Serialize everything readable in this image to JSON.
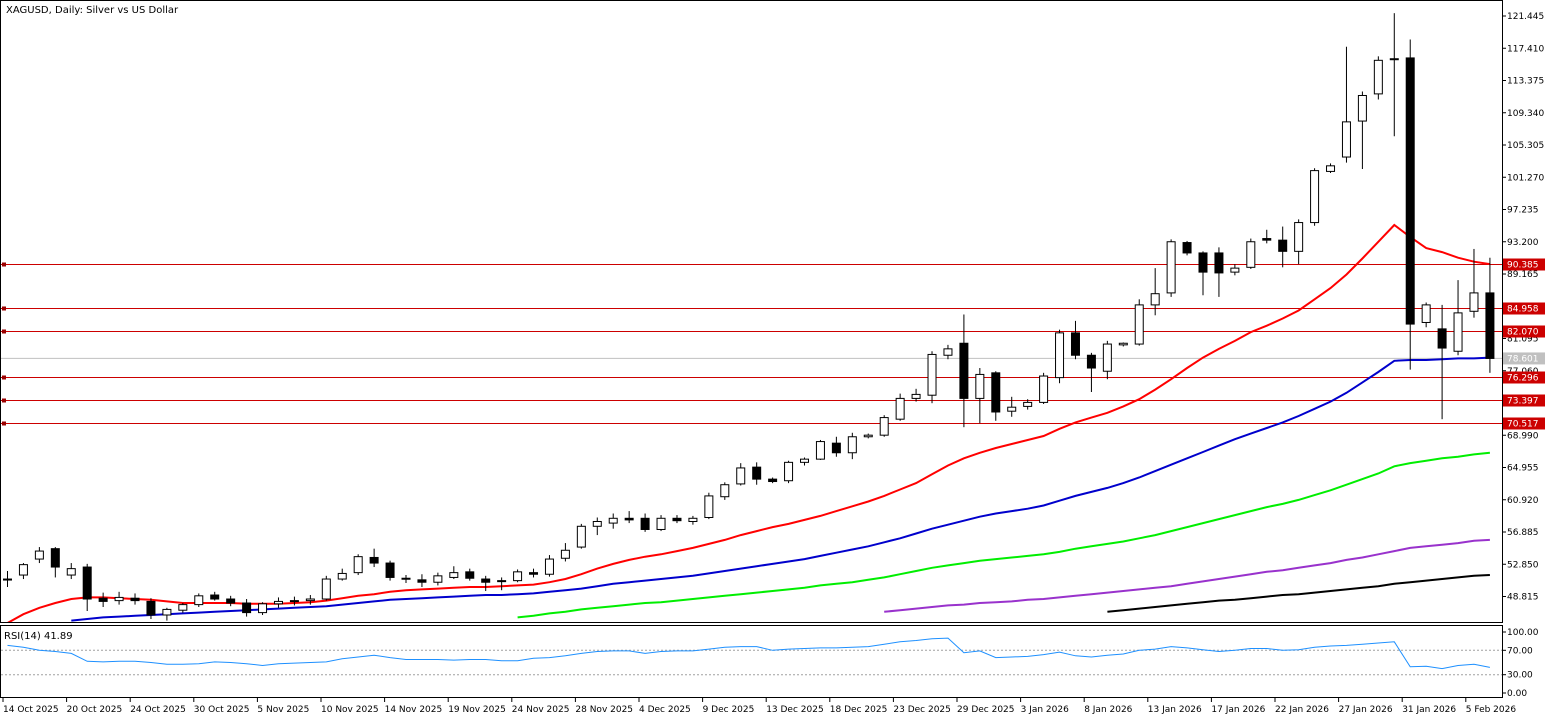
{
  "chart_title": "XAGUSD, Daily:  Silver vs US Dollar",
  "rsi_label": "RSI(14) 41.89",
  "colors": {
    "ma_fast": "#ff0000",
    "ma_mid": "#0000cc",
    "ma_slow": "#00ee00",
    "ma_slower": "#9932cc",
    "ma_slowest": "#000000",
    "rsi_line": "#1e90ff",
    "level_line": "#cc0000",
    "current_price": "#c0c0c0"
  },
  "price_axis": [
    "121.445",
    "117.410",
    "113.375",
    "109.340",
    "105.305",
    "101.270",
    "97.235",
    "93.200",
    "89.165",
    "85.130",
    "81.095",
    "77.060",
    "73.025",
    "68.990",
    "64.955",
    "60.920",
    "56.885",
    "52.850",
    "48.815"
  ],
  "rsi_axis": [
    "100.00",
    "70.00",
    "30.00",
    "0.00"
  ],
  "time_axis": [
    "14 Oct 2025",
    "20 Oct 2025",
    "24 Oct 2025",
    "30 Oct 2025",
    "5 Nov 2025",
    "10 Nov 2025",
    "14 Nov 2025",
    "19 Nov 2025",
    "24 Nov 2025",
    "28 Nov 2025",
    "4 Dec 2025",
    "9 Dec 2025",
    "13 Dec 2025",
    "18 Dec 2025",
    "23 Dec 2025",
    "29 Dec 2025",
    "3 Jan 2026",
    "8 Jan 2026",
    "13 Jan 2026",
    "17 Jan 2026",
    "22 Jan 2026",
    "27 Jan 2026",
    "31 Jan 2026",
    "5 Feb 2026"
  ],
  "levels": [
    "90.385",
    "84.958",
    "82.070",
    "76.296",
    "73.397",
    "70.517"
  ],
  "current_price": "78.601",
  "chart_data": {
    "type": "candlestick",
    "title": "XAGUSD, Daily:  Silver vs US Dollar",
    "symbol": "XAGUSD",
    "timeframe": "Daily",
    "ylim": [
      46.8,
      123.3
    ],
    "candles": [
      [
        51.0,
        52.0,
        50.0,
        51.0
      ],
      [
        51.5,
        53.0,
        51.0,
        52.8
      ],
      [
        53.5,
        55.0,
        53.0,
        54.5
      ],
      [
        54.8,
        55.0,
        51.2,
        52.5
      ],
      [
        51.5,
        53.0,
        51.0,
        52.3
      ],
      [
        52.5,
        52.9,
        47.0,
        48.5
      ],
      [
        48.6,
        49.3,
        47.5,
        48.2
      ],
      [
        48.3,
        49.4,
        47.8,
        48.7
      ],
      [
        48.6,
        49.2,
        47.8,
        48.3
      ],
      [
        48.2,
        48.6,
        46.0,
        46.5
      ],
      [
        46.5,
        47.4,
        45.8,
        47.2
      ],
      [
        47.1,
        48.0,
        46.8,
        47.8
      ],
      [
        47.8,
        49.2,
        47.5,
        48.9
      ],
      [
        49.0,
        49.4,
        48.3,
        48.5
      ],
      [
        48.5,
        48.9,
        47.6,
        48.0
      ],
      [
        48.0,
        48.5,
        46.3,
        46.8
      ],
      [
        46.8,
        48.1,
        46.5,
        47.9
      ],
      [
        47.9,
        48.7,
        47.4,
        48.2
      ],
      [
        48.2,
        48.8,
        47.7,
        48.3
      ],
      [
        48.3,
        49.0,
        47.8,
        48.5
      ],
      [
        48.5,
        51.4,
        48.3,
        51.0
      ],
      [
        51.0,
        52.3,
        50.8,
        51.7
      ],
      [
        51.8,
        54.1,
        51.5,
        53.8
      ],
      [
        53.7,
        54.8,
        52.5,
        53.0
      ],
      [
        53.0,
        53.3,
        50.8,
        51.2
      ],
      [
        51.1,
        51.5,
        50.5,
        51.0
      ],
      [
        50.9,
        51.6,
        50.0,
        50.6
      ],
      [
        50.6,
        51.8,
        50.2,
        51.4
      ],
      [
        51.2,
        52.6,
        51.0,
        51.8
      ],
      [
        51.9,
        52.3,
        50.8,
        51.1
      ],
      [
        51.0,
        51.4,
        49.5,
        50.6
      ],
      [
        50.7,
        51.2,
        49.6,
        50.8
      ],
      [
        50.8,
        52.2,
        50.6,
        51.9
      ],
      [
        51.8,
        52.3,
        51.2,
        51.6
      ],
      [
        51.6,
        54.0,
        51.3,
        53.5
      ],
      [
        53.6,
        55.5,
        53.2,
        54.6
      ],
      [
        55.0,
        57.9,
        54.8,
        57.6
      ],
      [
        57.6,
        58.7,
        56.5,
        58.2
      ],
      [
        58.0,
        59.2,
        57.3,
        58.6
      ],
      [
        58.6,
        59.5,
        58.0,
        58.4
      ],
      [
        58.6,
        59.2,
        56.9,
        57.2
      ],
      [
        57.2,
        59.0,
        57.0,
        58.6
      ],
      [
        58.6,
        59.0,
        58.0,
        58.3
      ],
      [
        58.2,
        58.9,
        57.8,
        58.6
      ],
      [
        58.7,
        61.8,
        58.5,
        61.4
      ],
      [
        61.3,
        63.1,
        60.9,
        62.8
      ],
      [
        62.9,
        65.5,
        62.7,
        64.9
      ],
      [
        65.0,
        65.6,
        62.8,
        63.5
      ],
      [
        63.5,
        63.7,
        63.0,
        63.2
      ],
      [
        63.3,
        65.8,
        63.0,
        65.6
      ],
      [
        65.6,
        66.2,
        65.2,
        66.0
      ],
      [
        66.0,
        68.4,
        65.9,
        68.2
      ],
      [
        68.0,
        68.8,
        66.3,
        66.8
      ],
      [
        66.8,
        69.3,
        66.0,
        68.8
      ],
      [
        68.8,
        69.2,
        68.6,
        69.0
      ],
      [
        69.0,
        71.5,
        68.8,
        71.2
      ],
      [
        71.0,
        74.2,
        70.8,
        73.6
      ],
      [
        73.6,
        74.8,
        73.2,
        74.1
      ],
      [
        74.0,
        79.5,
        73.0,
        79.1
      ],
      [
        79.0,
        80.3,
        78.5,
        79.8
      ],
      [
        80.5,
        84.1,
        70.0,
        73.6
      ],
      [
        73.6,
        77.4,
        70.5,
        76.6
      ],
      [
        76.8,
        77.0,
        70.8,
        71.9
      ],
      [
        72.0,
        73.8,
        71.3,
        72.5
      ],
      [
        72.6,
        73.5,
        72.2,
        73.1
      ],
      [
        73.1,
        76.8,
        72.9,
        76.4
      ],
      [
        76.2,
        82.2,
        75.5,
        81.8
      ],
      [
        81.8,
        83.3,
        78.5,
        79.0
      ],
      [
        79.0,
        79.3,
        74.4,
        77.4
      ],
      [
        77.0,
        80.8,
        76.0,
        80.4
      ],
      [
        80.3,
        80.6,
        80.1,
        80.5
      ],
      [
        80.4,
        86.0,
        80.2,
        85.3
      ],
      [
        85.3,
        89.9,
        84.0,
        86.7
      ],
      [
        86.8,
        93.5,
        86.3,
        93.2
      ],
      [
        93.1,
        93.3,
        91.5,
        91.8
      ],
      [
        91.8,
        92.0,
        86.5,
        89.4
      ],
      [
        91.8,
        92.5,
        86.3,
        89.3
      ],
      [
        89.4,
        90.4,
        89.0,
        89.9
      ],
      [
        90.0,
        93.6,
        89.8,
        93.2
      ],
      [
        93.6,
        94.7,
        93.0,
        93.4
      ],
      [
        93.4,
        95.1,
        90.0,
        92.0
      ],
      [
        92.0,
        96.0,
        90.4,
        95.6
      ],
      [
        95.6,
        102.4,
        95.2,
        102.1
      ],
      [
        102.0,
        103.0,
        101.8,
        102.7
      ],
      [
        103.8,
        117.6,
        103.1,
        108.2
      ],
      [
        108.3,
        112.0,
        102.3,
        111.5
      ],
      [
        111.7,
        116.4,
        111.0,
        115.9
      ],
      [
        116.0,
        121.8,
        106.4,
        116.1
      ],
      [
        116.2,
        118.5,
        77.2,
        82.9
      ],
      [
        83.1,
        85.6,
        82.5,
        85.3
      ],
      [
        82.3,
        85.3,
        71.0,
        79.9
      ],
      [
        79.5,
        88.4,
        79.0,
        84.3
      ],
      [
        84.5,
        92.3,
        83.7,
        86.8
      ],
      [
        86.8,
        91.2,
        76.8,
        78.6
      ]
    ],
    "series": [
      {
        "values": [
          45.5,
          46.6,
          47.4,
          48.0,
          48.5,
          48.7,
          48.7,
          48.6,
          48.5,
          48.4,
          48.2,
          48.0,
          48.0,
          48.0,
          48.0,
          47.9,
          47.9,
          47.9,
          48.0,
          48.1,
          48.3,
          48.6,
          48.9,
          49.1,
          49.4,
          49.6,
          49.7,
          49.8,
          49.9,
          50.0,
          50.0,
          50.1,
          50.2,
          50.3,
          50.6,
          51.0,
          51.6,
          52.3,
          52.9,
          53.4,
          53.8,
          54.1,
          54.5,
          54.9,
          55.4,
          55.9,
          56.5,
          57.0,
          57.5,
          57.9,
          58.4,
          58.9,
          59.5,
          60.1,
          60.7,
          61.4,
          62.2,
          63.0,
          64.1,
          65.2,
          66.1,
          66.8,
          67.4,
          67.9,
          68.4,
          68.9,
          69.8,
          70.6,
          71.2,
          71.8,
          72.6,
          73.5,
          74.7,
          76.0,
          77.4,
          78.7,
          79.8,
          80.8,
          81.9,
          82.7,
          83.6,
          84.6,
          86.0,
          87.4,
          89.1,
          91.1,
          93.2,
          95.3,
          93.8,
          92.4,
          91.9,
          91.2,
          90.7,
          90.4
        ]
      },
      {
        "values": [
          null,
          null,
          null,
          null,
          45.8,
          46.0,
          46.2,
          46.3,
          46.4,
          46.5,
          46.6,
          46.7,
          46.8,
          46.9,
          47.0,
          47.1,
          47.2,
          47.3,
          47.4,
          47.5,
          47.6,
          47.8,
          48.0,
          48.2,
          48.4,
          48.5,
          48.6,
          48.7,
          48.8,
          48.9,
          49.0,
          49.0,
          49.1,
          49.2,
          49.4,
          49.6,
          49.8,
          50.1,
          50.4,
          50.6,
          50.8,
          51.0,
          51.2,
          51.4,
          51.7,
          52.0,
          52.3,
          52.6,
          52.9,
          53.2,
          53.5,
          53.9,
          54.3,
          54.7,
          55.1,
          55.6,
          56.1,
          56.7,
          57.3,
          57.8,
          58.3,
          58.8,
          59.2,
          59.5,
          59.8,
          60.2,
          60.8,
          61.4,
          61.9,
          62.4,
          63.0,
          63.7,
          64.5,
          65.3,
          66.1,
          66.9,
          67.7,
          68.5,
          69.2,
          69.9,
          70.6,
          71.4,
          72.3,
          73.2,
          74.3,
          75.6,
          76.9,
          78.3,
          78.4,
          78.4,
          78.5,
          78.6,
          78.6,
          78.7
        ]
      },
      {
        "values": [
          null,
          null,
          null,
          null,
          null,
          null,
          null,
          null,
          null,
          null,
          null,
          null,
          null,
          null,
          null,
          null,
          null,
          null,
          null,
          null,
          null,
          null,
          null,
          null,
          null,
          null,
          null,
          null,
          null,
          null,
          null,
          null,
          46.2,
          46.4,
          46.7,
          46.9,
          47.2,
          47.4,
          47.6,
          47.8,
          48.0,
          48.1,
          48.3,
          48.5,
          48.7,
          48.9,
          49.1,
          49.3,
          49.5,
          49.7,
          49.9,
          50.2,
          50.4,
          50.6,
          50.9,
          51.2,
          51.6,
          52.0,
          52.4,
          52.7,
          53.0,
          53.3,
          53.5,
          53.7,
          53.9,
          54.1,
          54.4,
          54.8,
          55.1,
          55.4,
          55.7,
          56.1,
          56.5,
          57.0,
          57.5,
          58.0,
          58.5,
          59.0,
          59.5,
          60.0,
          60.4,
          60.9,
          61.5,
          62.1,
          62.8,
          63.5,
          64.2,
          65.1,
          65.5,
          65.8,
          66.1,
          66.3,
          66.6,
          66.8
        ]
      },
      {
        "values": [
          null,
          null,
          null,
          null,
          null,
          null,
          null,
          null,
          null,
          null,
          null,
          null,
          null,
          null,
          null,
          null,
          null,
          null,
          null,
          null,
          null,
          null,
          null,
          null,
          null,
          null,
          null,
          null,
          null,
          null,
          null,
          null,
          null,
          null,
          null,
          null,
          null,
          null,
          null,
          null,
          null,
          null,
          null,
          null,
          null,
          null,
          null,
          null,
          null,
          null,
          null,
          null,
          null,
          null,
          null,
          46.9,
          47.1,
          47.3,
          47.5,
          47.7,
          47.8,
          48.0,
          48.1,
          48.2,
          48.4,
          48.5,
          48.7,
          48.9,
          49.1,
          49.3,
          49.5,
          49.7,
          49.9,
          50.1,
          50.4,
          50.7,
          51.0,
          51.3,
          51.6,
          51.9,
          52.1,
          52.4,
          52.7,
          53.0,
          53.4,
          53.7,
          54.1,
          54.5,
          54.9,
          55.1,
          55.3,
          55.5,
          55.8,
          55.9
        ]
      },
      {
        "values": [
          null,
          null,
          null,
          null,
          null,
          null,
          null,
          null,
          null,
          null,
          null,
          null,
          null,
          null,
          null,
          null,
          null,
          null,
          null,
          null,
          null,
          null,
          null,
          null,
          null,
          null,
          null,
          null,
          null,
          null,
          null,
          null,
          null,
          null,
          null,
          null,
          null,
          null,
          null,
          null,
          null,
          null,
          null,
          null,
          null,
          null,
          null,
          null,
          null,
          null,
          null,
          null,
          null,
          null,
          null,
          null,
          null,
          null,
          null,
          null,
          null,
          null,
          null,
          null,
          null,
          null,
          null,
          null,
          null,
          46.9,
          47.1,
          47.3,
          47.5,
          47.7,
          47.9,
          48.1,
          48.3,
          48.4,
          48.6,
          48.8,
          49.0,
          49.1,
          49.3,
          49.5,
          49.7,
          49.9,
          50.1,
          50.4,
          50.6,
          50.8,
          51.0,
          51.2,
          51.4,
          51.5
        ]
      }
    ],
    "rsi": [
      78,
      75,
      70,
      68,
      65,
      52,
      51,
      52,
      52,
      50,
      47,
      47,
      48,
      51,
      50,
      48,
      45,
      48,
      49,
      50,
      51,
      56,
      59,
      62,
      58,
      55,
      55,
      55,
      54,
      55,
      55,
      53,
      53,
      57,
      58,
      61,
      65,
      68,
      69,
      69,
      65,
      68,
      69,
      69,
      72,
      75,
      76,
      76,
      70,
      72,
      73,
      74,
      74,
      75,
      76,
      80,
      84,
      86,
      89,
      90,
      66,
      69,
      58,
      59,
      60,
      63,
      67,
      61,
      59,
      62,
      64,
      70,
      72,
      76,
      74,
      71,
      68,
      70,
      73,
      73,
      70,
      71,
      75,
      77,
      78,
      80,
      82,
      84,
      43,
      44,
      40,
      45,
      47,
      42
    ],
    "rsi_ylim": [
      0,
      100
    ]
  }
}
